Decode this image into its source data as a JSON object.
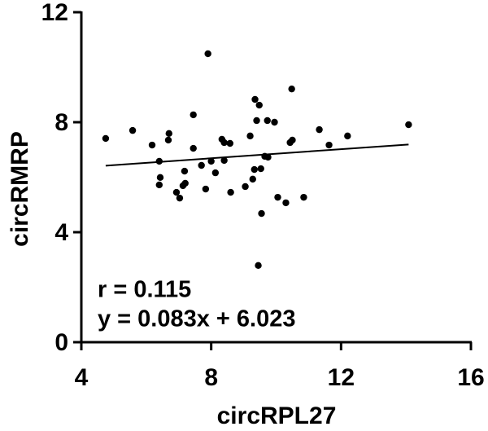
{
  "chart_data": {
    "type": "scatter",
    "x_label": "circRPL27",
    "y_label": "circRMRP",
    "xlim": [
      4,
      16
    ],
    "xticks": [
      4,
      8,
      12,
      16
    ],
    "ylim": [
      0,
      12
    ],
    "yticks": [
      0,
      4,
      8,
      12
    ],
    "color": "#000000",
    "x": [
      4.75,
      5.58,
      6.18,
      6.4,
      6.43,
      6.4,
      6.7,
      6.68,
      6.93,
      7.03,
      7.18,
      7.2,
      7.13,
      7.45,
      7.45,
      7.7,
      7.83,
      7.9,
      8.0,
      8.13,
      8.33,
      8.4,
      8.58,
      8.4,
      8.6,
      9.05,
      9.2,
      9.33,
      9.28,
      9.35,
      9.48,
      9.4,
      9.53,
      9.55,
      9.45,
      9.65,
      9.75,
      9.73,
      9.95,
      10.05,
      10.3,
      10.43,
      10.5,
      10.48,
      10.85,
      11.33,
      11.63,
      12.2,
      14.08
    ],
    "y": [
      7.41,
      7.7,
      7.17,
      6.58,
      5.99,
      5.72,
      7.59,
      7.35,
      5.45,
      5.24,
      6.22,
      5.78,
      5.69,
      8.27,
      7.05,
      6.43,
      5.57,
      10.49,
      6.58,
      6.16,
      7.38,
      7.26,
      7.23,
      6.61,
      5.45,
      5.66,
      7.5,
      6.28,
      5.93,
      8.83,
      8.62,
      8.06,
      6.31,
      4.68,
      2.79,
      6.76,
      6.73,
      8.06,
      8.0,
      5.27,
      5.07,
      7.26,
      7.35,
      9.21,
      5.27,
      7.73,
      7.17,
      7.5,
      7.91
    ],
    "trendline": {
      "x": [
        4.75,
        14.08
      ],
      "y": [
        6.42,
        7.19
      ]
    },
    "annotations": [
      "r = 0.115",
      "y = 0.083x + 6.023"
    ]
  }
}
